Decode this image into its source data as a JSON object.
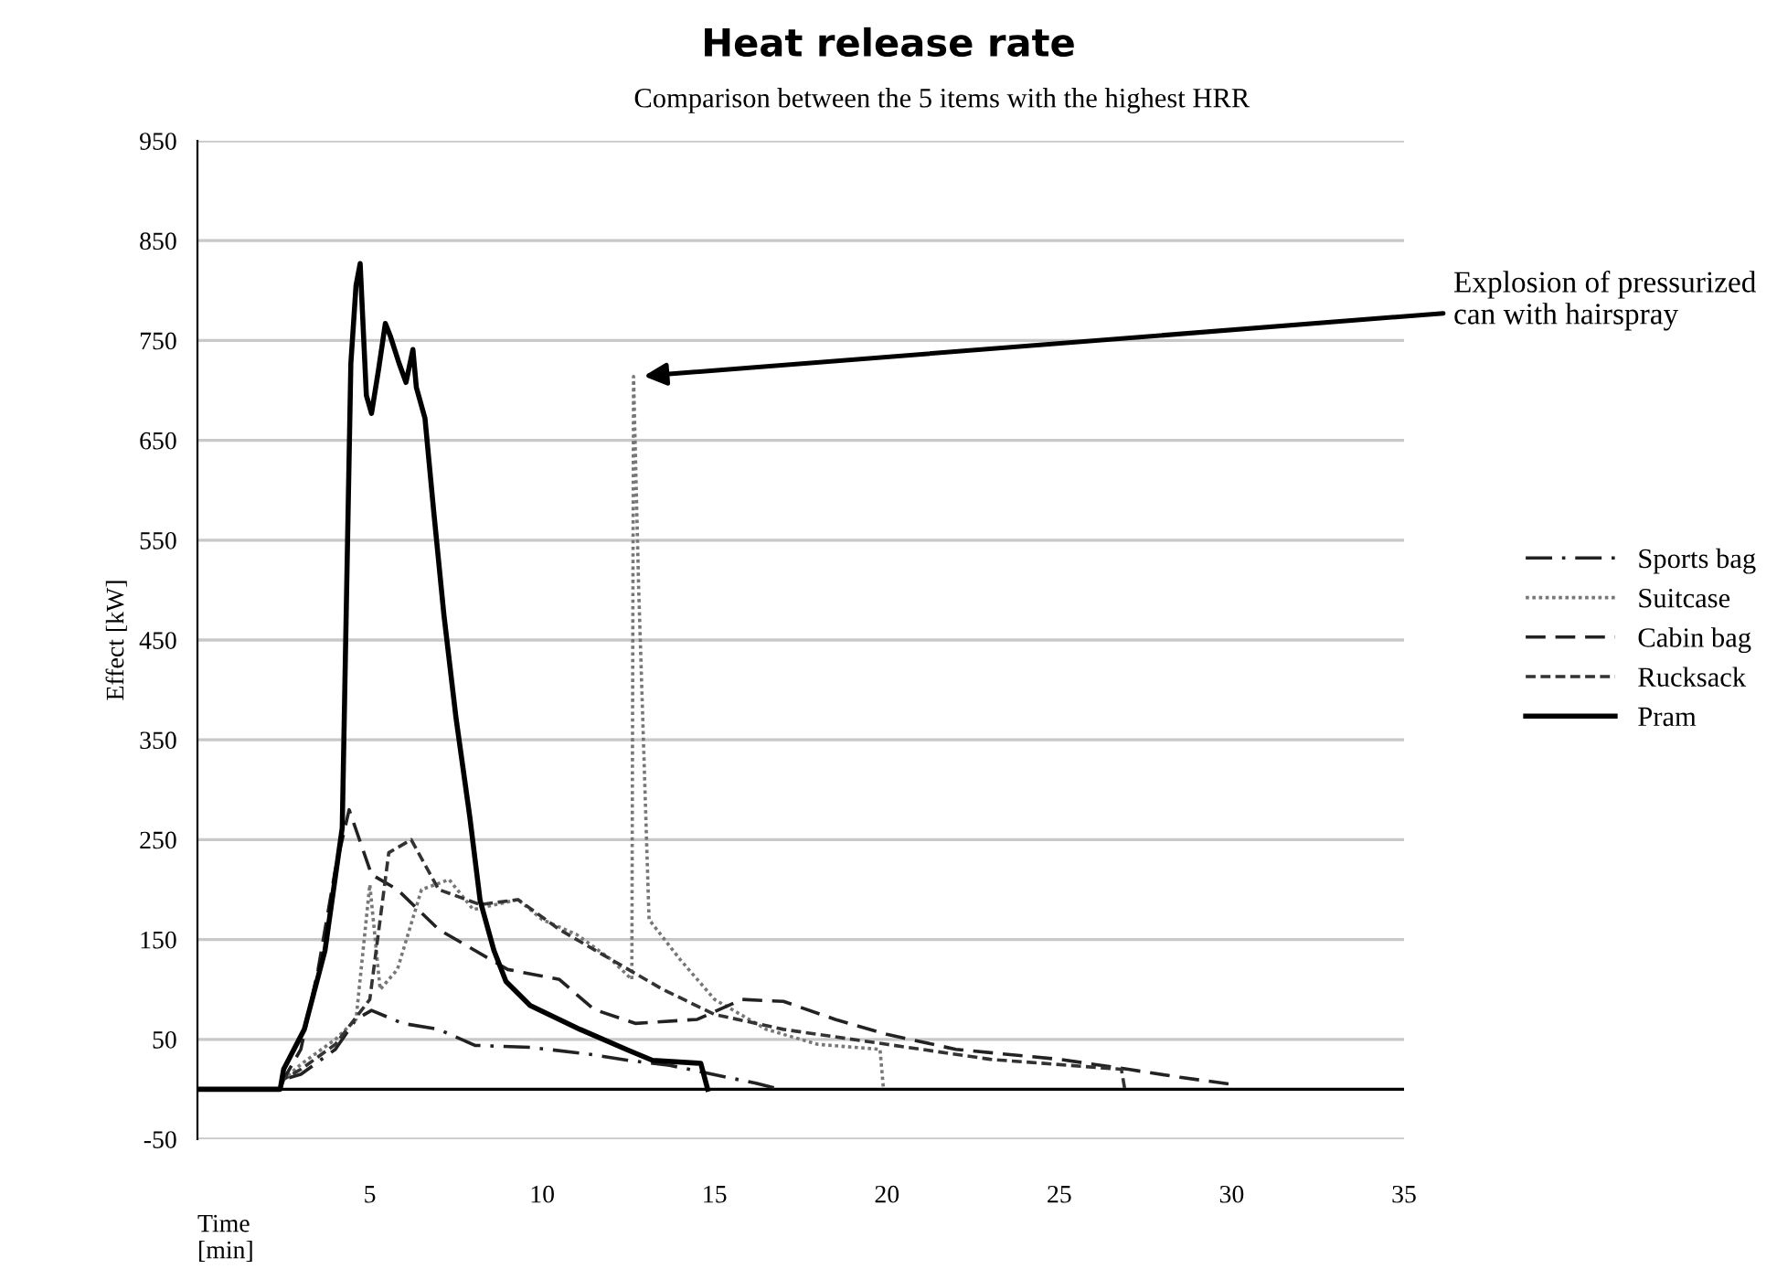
{
  "chart_data": {
    "type": "line",
    "title": "Heat release rate",
    "subtitle": "Comparison between the 5 items with the highest HRR",
    "xlabel": "Time [min]",
    "ylabel": "Effect [kW]",
    "xlim": [
      0,
      35
    ],
    "xticks": [
      5,
      10,
      15,
      20,
      25,
      30,
      35
    ],
    "ylim": [
      -50,
      950
    ],
    "yticks": [
      -50,
      50,
      150,
      250,
      350,
      450,
      550,
      650,
      750,
      850,
      950
    ],
    "grid": "y",
    "legend": "right",
    "marker": "none",
    "ref_lines": [
      {
        "axis": "y",
        "value": 0,
        "color": "#000000"
      }
    ],
    "annotations": [
      {
        "text": "Explosion of pressurized can with hairspray",
        "x": 12.8,
        "y": 714
      }
    ],
    "series": [
      {
        "name": "Sports bag",
        "color": "#222222",
        "line_style": "dashdot",
        "x": [
          0,
          2.4,
          2.5,
          3,
          4,
          4.6,
          5.05,
          5.95,
          7,
          8.05,
          9.65,
          11.4,
          12.5,
          13.7,
          16.2,
          16.9
        ],
        "values": [
          0,
          0,
          10,
          15,
          40,
          70,
          79,
          66,
          60,
          44,
          42,
          35,
          29,
          24,
          6,
          0
        ]
      },
      {
        "name": "Suitcase",
        "color": "#777777",
        "line_style": "dotted",
        "x": [
          0,
          2.4,
          2.5,
          3,
          4,
          4.6,
          5,
          5.3,
          5.8,
          6.5,
          7.3,
          8,
          9.3,
          10,
          11,
          12,
          12.6,
          12.65,
          12.8,
          13.1,
          14,
          15,
          16.5,
          18,
          19.8,
          19.9
        ],
        "values": [
          0,
          0,
          10,
          25,
          50,
          70,
          205,
          100,
          120,
          200,
          210,
          180,
          190,
          170,
          155,
          130,
          110,
          714,
          500,
          170,
          130,
          90,
          60,
          45,
          40,
          0
        ]
      },
      {
        "name": "Cabin bag",
        "color": "#222222",
        "line_style": "dashed",
        "x": [
          0,
          2.4,
          2.5,
          3,
          3.5,
          4,
          4.4,
          5.05,
          5.8,
          7,
          8,
          9,
          10.5,
          11.5,
          12.7,
          14.5,
          15.8,
          17,
          18.5,
          20,
          22,
          25,
          27,
          28.5,
          30
        ],
        "values": [
          0,
          0,
          10,
          40,
          120,
          220,
          280,
          215,
          200,
          160,
          140,
          120,
          110,
          80,
          66,
          70,
          90,
          88,
          70,
          55,
          40,
          30,
          20,
          12,
          5
        ]
      },
      {
        "name": "Rucksack",
        "color": "#333333",
        "line_style": "dashed_dense",
        "x": [
          0,
          2.4,
          2.5,
          3,
          4,
          5,
          5.55,
          6.2,
          7,
          8.2,
          9.3,
          10.5,
          12,
          13.5,
          15,
          17,
          20,
          23,
          26.8,
          26.9
        ],
        "values": [
          0,
          0,
          10,
          20,
          45,
          90,
          237,
          250,
          200,
          185,
          190,
          160,
          130,
          100,
          75,
          60,
          45,
          30,
          20,
          0
        ]
      },
      {
        "name": "Pram",
        "color": "#000000",
        "line_style": "solid",
        "x": [
          0,
          2.4,
          2.5,
          3.1,
          3.7,
          4.2,
          4.45,
          4.6,
          4.72,
          4.9,
          5.05,
          5.25,
          5.45,
          5.6,
          5.85,
          6.05,
          6.25,
          6.35,
          6.6,
          6.85,
          7.15,
          7.5,
          7.9,
          8.2,
          8.6,
          8.95,
          9.65,
          11.1,
          12.5,
          13.2,
          14.6,
          14.8
        ],
        "values": [
          0,
          0,
          20,
          60,
          139,
          262,
          727,
          805,
          827,
          695,
          677,
          720,
          767,
          754,
          727,
          708,
          741,
          703,
          672,
          580,
          475,
          372,
          273,
          189,
          139,
          108,
          84,
          60,
          39,
          29,
          26,
          0
        ]
      }
    ]
  }
}
